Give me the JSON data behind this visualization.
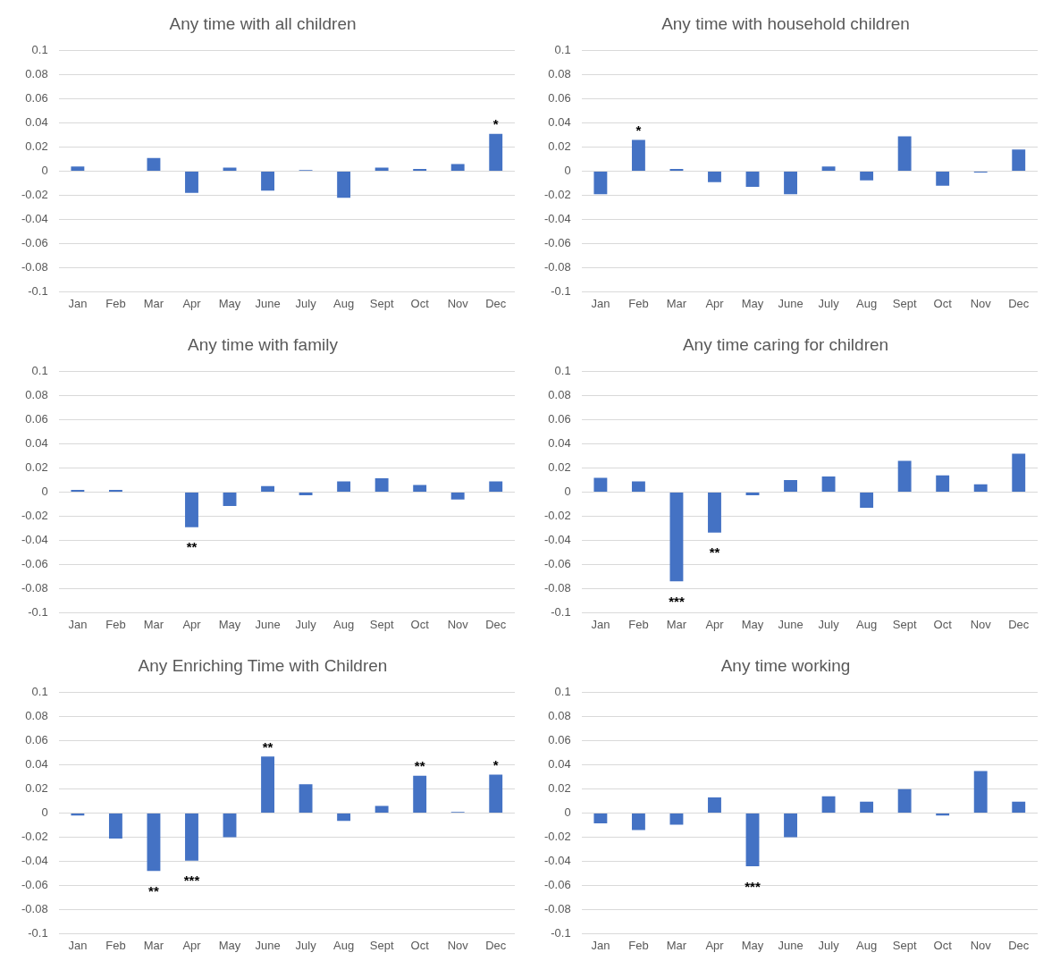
{
  "chart_data": [
    {
      "type": "bar",
      "title": "Any time with all children",
      "categories": [
        "Jan",
        "Feb",
        "Mar",
        "Apr",
        "May",
        "June",
        "July",
        "Aug",
        "Sept",
        "Oct",
        "Nov",
        "Dec"
      ],
      "values": [
        0.004,
        0,
        0.011,
        -0.018,
        0.003,
        -0.016,
        0.001,
        -0.022,
        0.003,
        0.002,
        0.006,
        0.031
      ],
      "color": "#4472c4",
      "ylim": [
        -0.1,
        0.1
      ],
      "yticks": [
        -0.1,
        -0.08,
        -0.06,
        -0.04,
        -0.02,
        0,
        0.02,
        0.04,
        0.06,
        0.08,
        0.1
      ],
      "grid": "y",
      "annotations": [
        {
          "text": "*",
          "x": "Dec",
          "y": 0.031
        }
      ]
    },
    {
      "type": "bar",
      "title": "Any time with household children",
      "categories": [
        "Jan",
        "Feb",
        "Mar",
        "Apr",
        "May",
        "June",
        "July",
        "Aug",
        "Sept",
        "Oct",
        "Nov",
        "Dec"
      ],
      "values": [
        -0.019,
        0.026,
        0.002,
        -0.009,
        -0.013,
        -0.019,
        0.004,
        -0.0075,
        0.029,
        -0.012,
        -0.001,
        0.018
      ],
      "color": "#4472c4",
      "ylim": [
        -0.1,
        0.1
      ],
      "yticks": [
        -0.1,
        -0.08,
        -0.06,
        -0.04,
        -0.02,
        0,
        0.02,
        0.04,
        0.06,
        0.08,
        0.1
      ],
      "grid": "y",
      "annotations": [
        {
          "text": "*",
          "x": "Feb",
          "y": 0.026
        }
      ]
    },
    {
      "type": "bar",
      "title": "Any time with family",
      "categories": [
        "Jan",
        "Feb",
        "Mar",
        "Apr",
        "May",
        "June",
        "July",
        "Aug",
        "Sept",
        "Oct",
        "Nov",
        "Dec"
      ],
      "values": [
        0.002,
        0.002,
        0,
        -0.029,
        -0.0115,
        0.005,
        -0.0025,
        0.009,
        0.0115,
        0.006,
        -0.006,
        0.009
      ],
      "color": "#4472c4",
      "ylim": [
        -0.1,
        0.1
      ],
      "yticks": [
        -0.1,
        -0.08,
        -0.06,
        -0.04,
        -0.02,
        0,
        0.02,
        0.04,
        0.06,
        0.08,
        0.1
      ],
      "grid": "y",
      "annotations": [
        {
          "text": "**",
          "x": "Apr",
          "y": -0.029
        }
      ]
    },
    {
      "type": "bar",
      "title": "Any time caring for children",
      "categories": [
        "Jan",
        "Feb",
        "Mar",
        "Apr",
        "May",
        "June",
        "July",
        "Aug",
        "Sept",
        "Oct",
        "Nov",
        "Dec"
      ],
      "values": [
        0.012,
        0.009,
        -0.074,
        -0.0335,
        -0.0025,
        0.01,
        0.013,
        -0.013,
        0.026,
        0.014,
        0.0065,
        0.032
      ],
      "color": "#4472c4",
      "ylim": [
        -0.1,
        0.1
      ],
      "yticks": [
        -0.1,
        -0.08,
        -0.06,
        -0.04,
        -0.02,
        0,
        0.02,
        0.04,
        0.06,
        0.08,
        0.1
      ],
      "grid": "y",
      "annotations": [
        {
          "text": "***",
          "x": "Mar",
          "y": -0.074
        },
        {
          "text": "**",
          "x": "Apr",
          "y": -0.0335
        }
      ]
    },
    {
      "type": "bar",
      "title": "Any Enriching Time with Children",
      "categories": [
        "Jan",
        "Feb",
        "Mar",
        "Apr",
        "May",
        "June",
        "July",
        "Aug",
        "Sept",
        "Oct",
        "Nov",
        "Dec"
      ],
      "values": [
        -0.002,
        -0.021,
        -0.048,
        -0.0395,
        -0.02,
        0.047,
        0.024,
        -0.0065,
        0.006,
        0.031,
        0.001,
        0.032
      ],
      "color": "#4472c4",
      "ylim": [
        -0.1,
        0.1
      ],
      "yticks": [
        -0.1,
        -0.08,
        -0.06,
        -0.04,
        -0.02,
        0,
        0.02,
        0.04,
        0.06,
        0.08,
        0.1
      ],
      "grid": "y",
      "annotations": [
        {
          "text": "**",
          "x": "Mar",
          "y": -0.048
        },
        {
          "text": "***",
          "x": "Apr",
          "y": -0.0395
        },
        {
          "text": "**",
          "x": "June",
          "y": 0.047
        },
        {
          "text": "**",
          "x": "Oct",
          "y": 0.031
        },
        {
          "text": "*",
          "x": "Dec",
          "y": 0.032
        }
      ]
    },
    {
      "type": "bar",
      "title": "Any time working",
      "categories": [
        "Jan",
        "Feb",
        "Mar",
        "Apr",
        "May",
        "June",
        "July",
        "Aug",
        "Sept",
        "Oct",
        "Nov",
        "Dec"
      ],
      "values": [
        -0.0085,
        -0.014,
        -0.0095,
        0.013,
        -0.044,
        -0.02,
        0.014,
        0.0095,
        0.02,
        -0.002,
        0.035,
        0.0095
      ],
      "color": "#4472c4",
      "ylim": [
        -0.1,
        0.1
      ],
      "yticks": [
        -0.1,
        -0.08,
        -0.06,
        -0.04,
        -0.02,
        0,
        0.02,
        0.04,
        0.06,
        0.08,
        0.1
      ],
      "grid": "y",
      "annotations": [
        {
          "text": "***",
          "x": "May",
          "y": -0.044
        }
      ]
    }
  ]
}
